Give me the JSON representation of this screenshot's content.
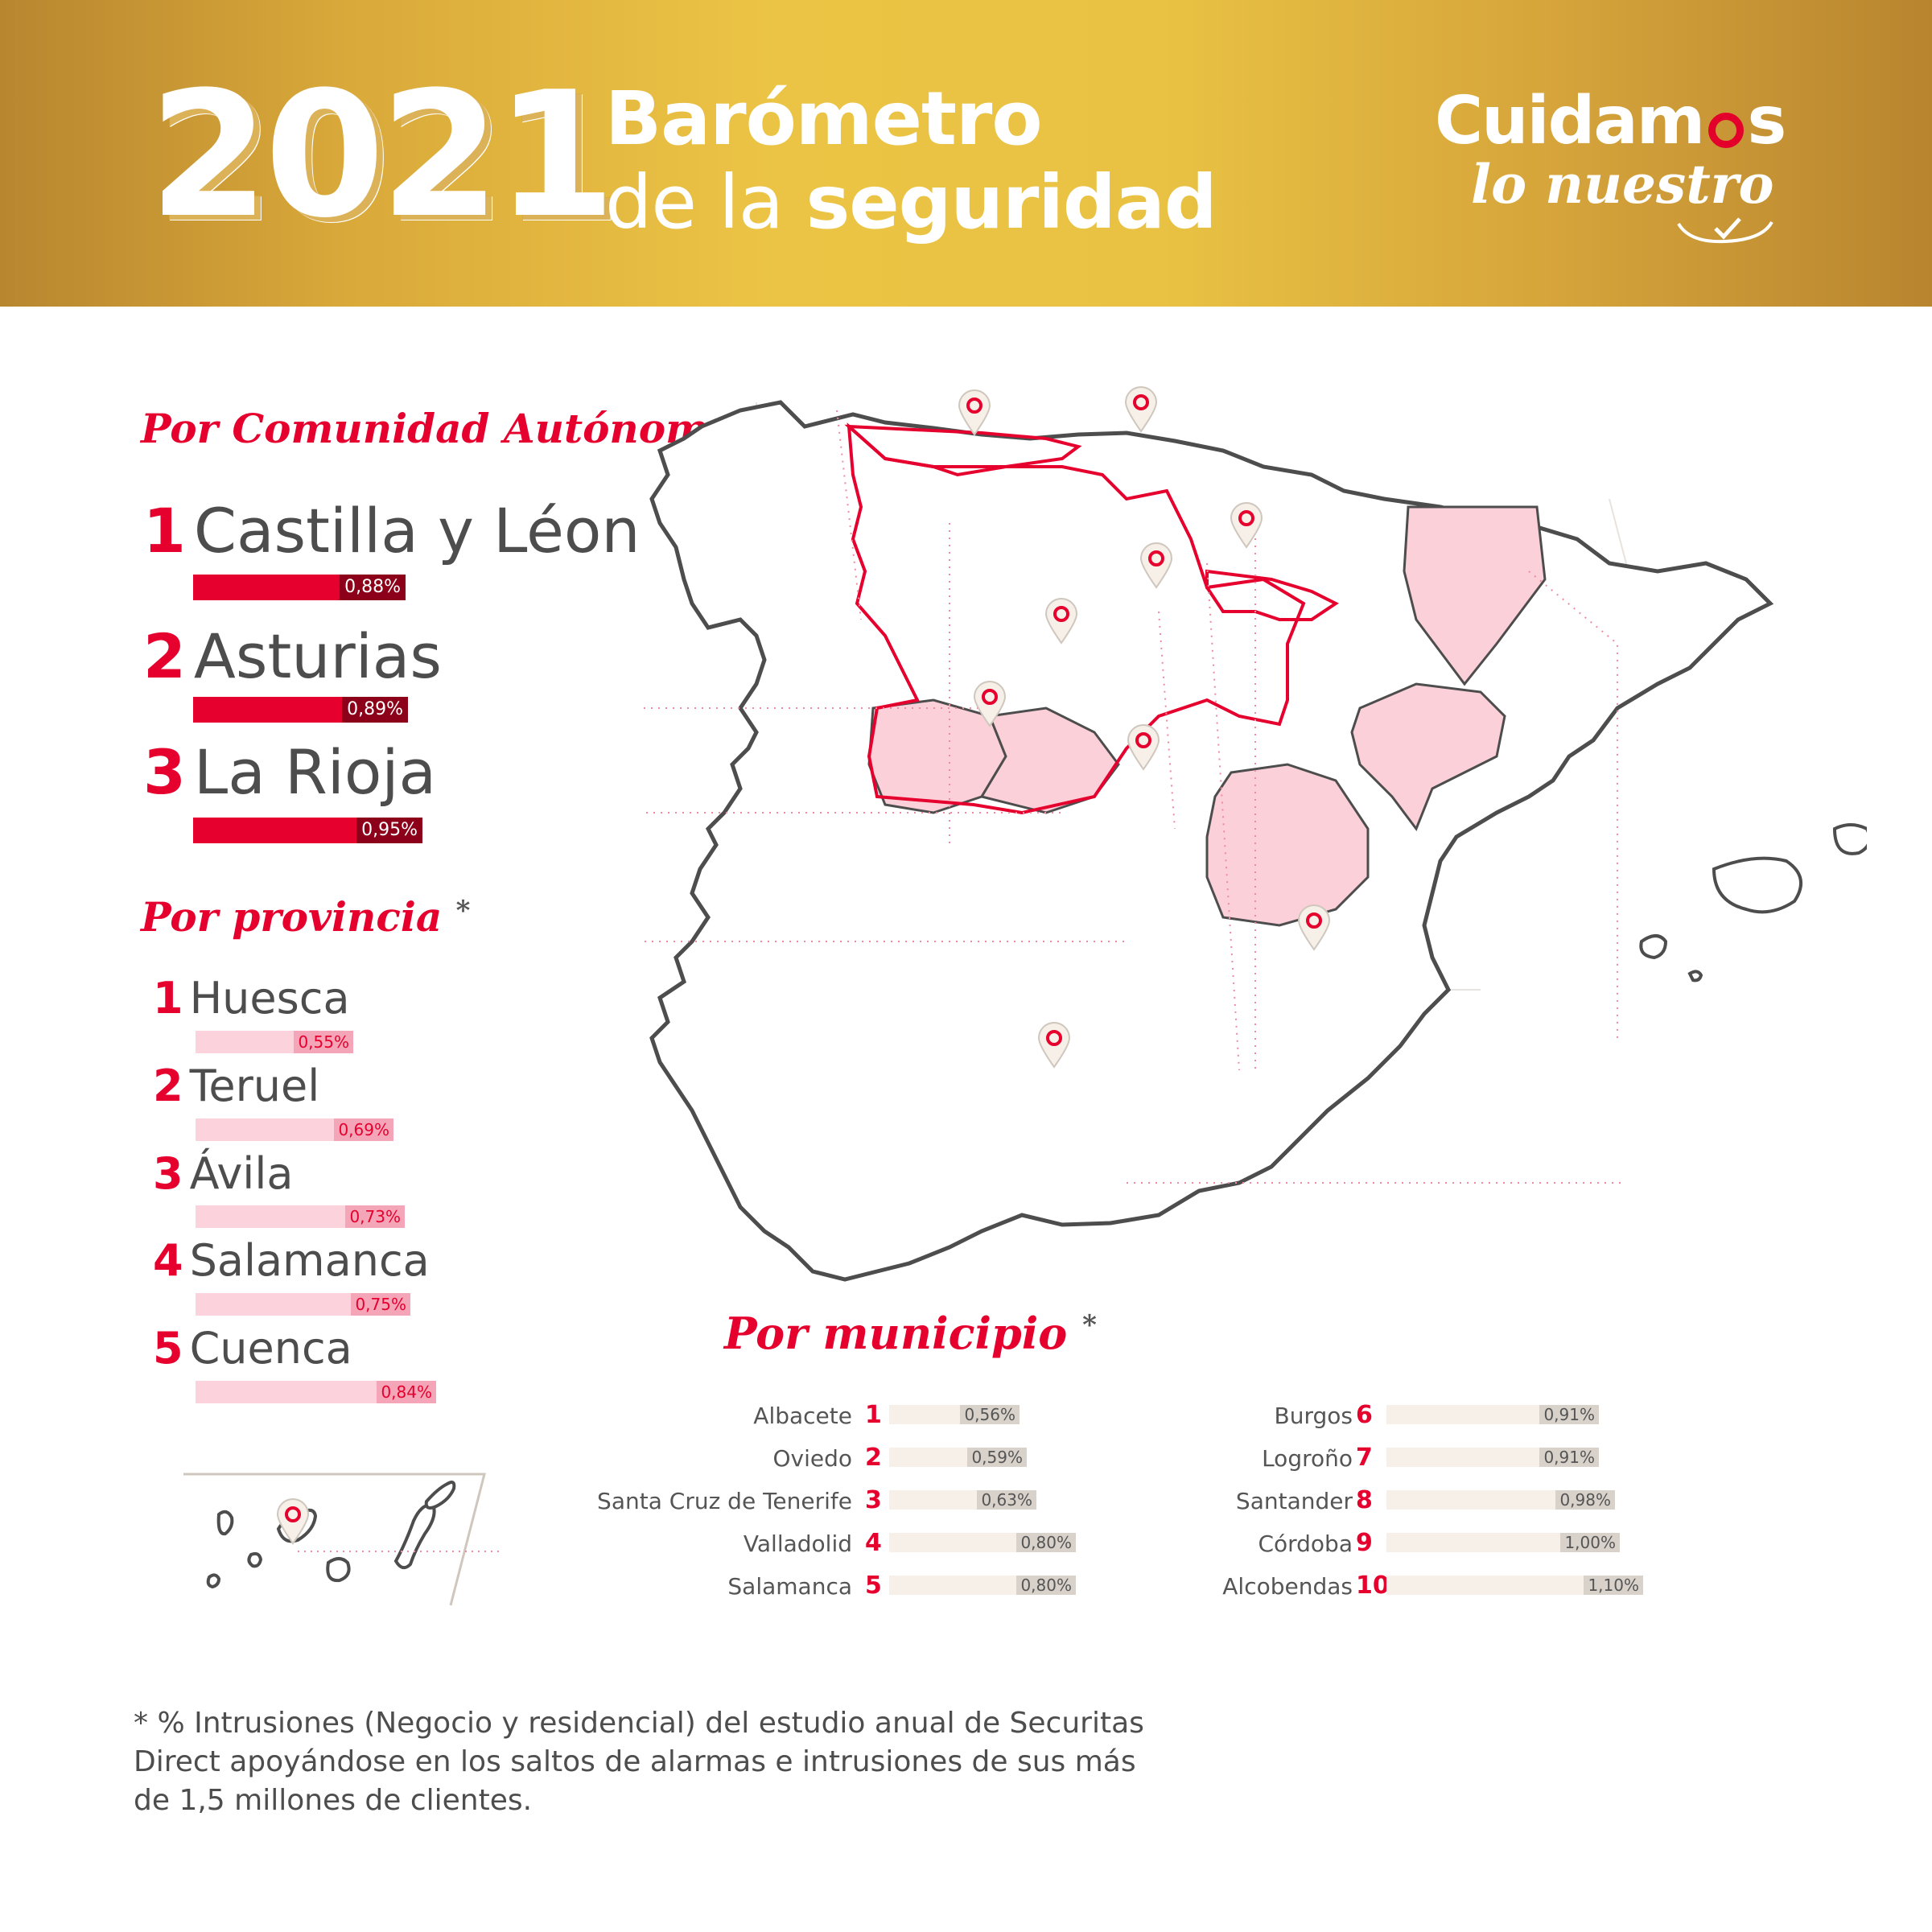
{
  "header": {
    "year": "2021",
    "title_line1": "Barómetro",
    "title_line2_prefix": "de la ",
    "title_line2_bold": "seguridad",
    "brand_line1_a": "Cuidam",
    "brand_line1_o": "o",
    "brand_line1_b": "s",
    "brand_line2": "lo nuestro"
  },
  "colors": {
    "accent": "#e6002e",
    "dark_red": "#8c0019",
    "pink": "#fcd3dc",
    "gold": "#e9c243"
  },
  "comunidad": {
    "title": "Por Comunidad Autónoma",
    "asterisk": "*",
    "items": [
      {
        "rank": "1",
        "name": "Castilla y Léon",
        "value": "0,88%",
        "pct": 0.88
      },
      {
        "rank": "2",
        "name": "Asturias",
        "value": "0,89%",
        "pct": 0.89
      },
      {
        "rank": "3",
        "name": "La Rioja",
        "value": "0,95%",
        "pct": 0.95
      }
    ]
  },
  "provincia": {
    "title": "Por provincia",
    "asterisk": "*",
    "items": [
      {
        "rank": "1",
        "name": "Huesca",
        "value": "0,55%",
        "pct": 0.55
      },
      {
        "rank": "2",
        "name": "Teruel",
        "value": "0,69%",
        "pct": 0.69
      },
      {
        "rank": "3",
        "name": "Ávila",
        "value": "0,73%",
        "pct": 0.73
      },
      {
        "rank": "4",
        "name": "Salamanca",
        "value": "0,75%",
        "pct": 0.75
      },
      {
        "rank": "5",
        "name": "Cuenca",
        "value": "0,84%",
        "pct": 0.84
      }
    ]
  },
  "municipio": {
    "title": "Por municipio",
    "asterisk": "*",
    "left": [
      {
        "rank": "1",
        "name": "Albacete",
        "value": "0,56%",
        "pct": 0.56
      },
      {
        "rank": "2",
        "name": "Oviedo",
        "value": "0,59%",
        "pct": 0.59
      },
      {
        "rank": "3",
        "name": "Santa Cruz de Tenerife",
        "value": "0,63%",
        "pct": 0.63
      },
      {
        "rank": "4",
        "name": "Valladolid",
        "value": "0,80%",
        "pct": 0.8
      },
      {
        "rank": "5",
        "name": "Salamanca",
        "value": "0,80%",
        "pct": 0.8
      }
    ],
    "right": [
      {
        "rank": "6",
        "name": "Burgos",
        "value": "0,91%",
        "pct": 0.91
      },
      {
        "rank": "7",
        "name": "Logroño",
        "value": "0,91%",
        "pct": 0.91
      },
      {
        "rank": "8",
        "name": "Santander",
        "value": "0,98%",
        "pct": 0.98
      },
      {
        "rank": "9",
        "name": "Córdoba",
        "value": "1,00%",
        "pct": 1.0
      },
      {
        "rank": "10",
        "name": "Alcobendas",
        "value": "1,10%",
        "pct": 1.1
      }
    ]
  },
  "footnote": {
    "line1": "* % Intrusiones (Negocio y residencial) del estudio anual de Securitas",
    "line2": "Direct apoyándose en los saltos de alarmas e intrusiones de sus más",
    "line3": "de 1,5 millones de clientes."
  }
}
